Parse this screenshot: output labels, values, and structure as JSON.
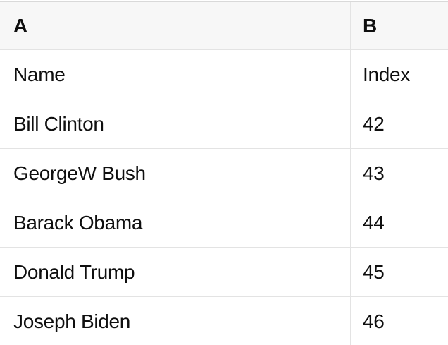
{
  "table": {
    "columns": [
      {
        "label": "A"
      },
      {
        "label": "B"
      }
    ],
    "rows": [
      {
        "name": "Name",
        "index": "Index"
      },
      {
        "name": "Bill Clinton",
        "index": "42"
      },
      {
        "name": "GeorgeW Bush",
        "index": "43"
      },
      {
        "name": "Barack Obama",
        "index": "44"
      },
      {
        "name": "Donald Trump",
        "index": "45"
      },
      {
        "name": "Joseph Biden",
        "index": "46"
      }
    ]
  },
  "colors": {
    "header_bg": "#f7f7f7",
    "border": "#e3e3e3",
    "top_border": "#d9d9d9",
    "text": "#0f0f0f",
    "row_bg": "#ffffff"
  }
}
